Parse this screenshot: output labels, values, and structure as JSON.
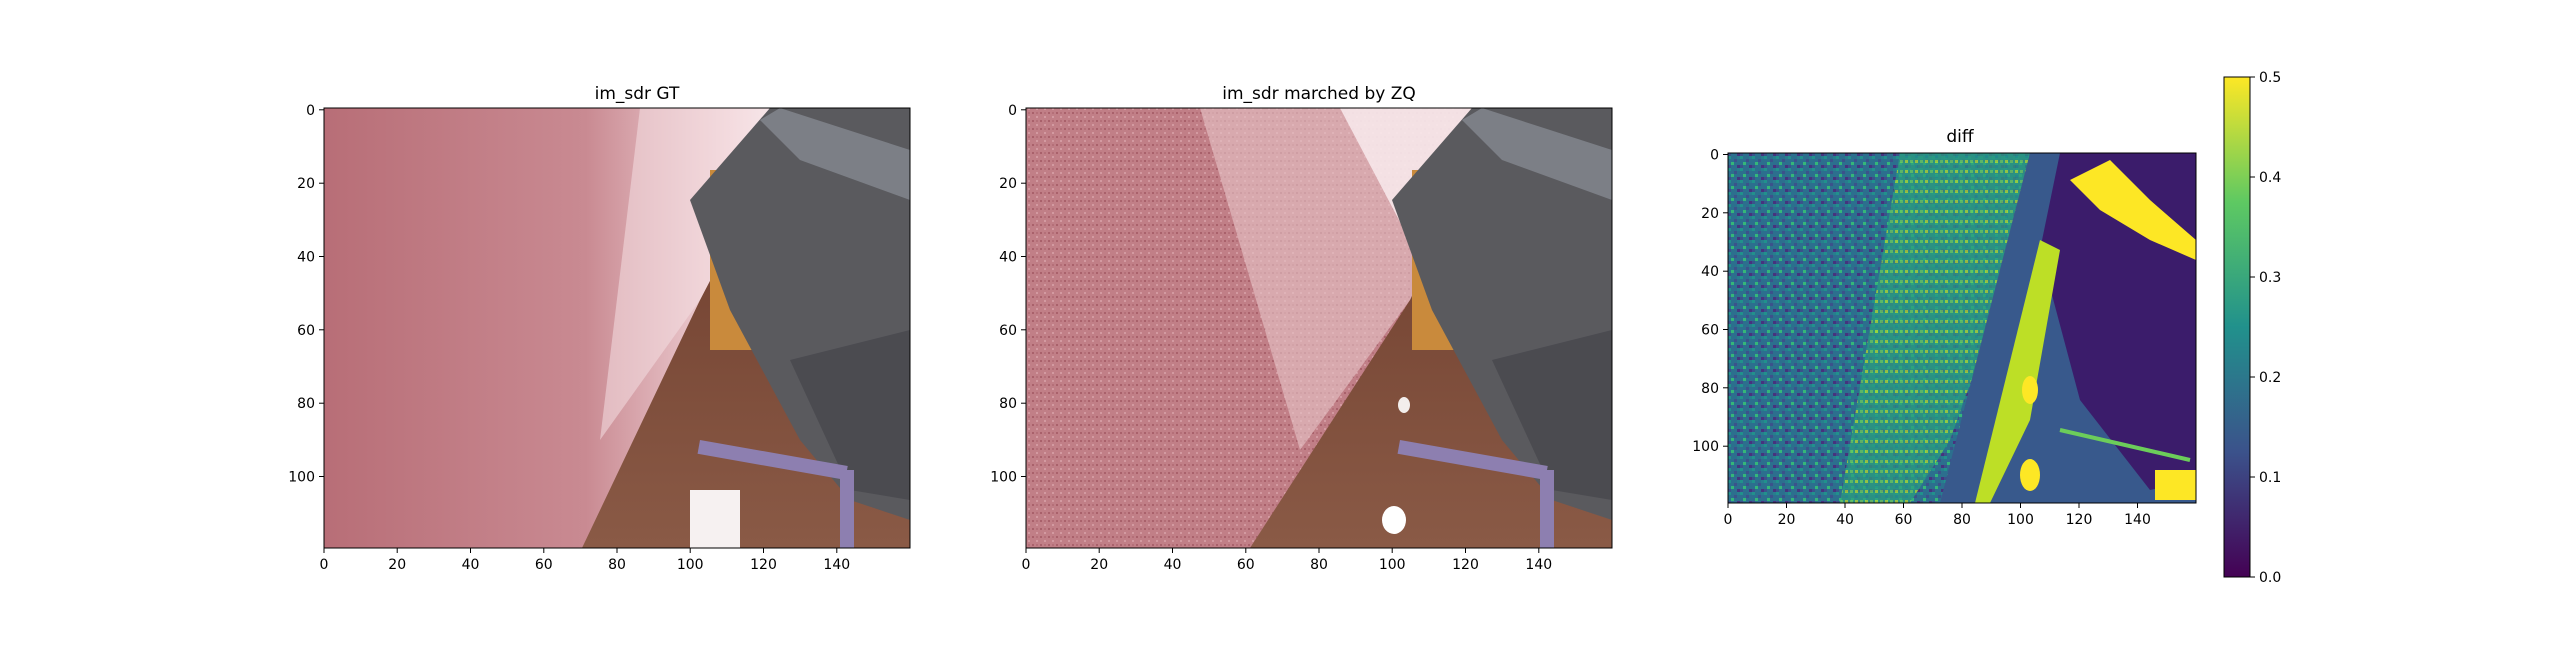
{
  "chart_data": [
    {
      "type": "heatmap",
      "title": "im_sdr GT",
      "content": "rendered RGB image",
      "xlim": [
        0,
        160
      ],
      "ylim": [
        120,
        0
      ],
      "xticks": [
        "0",
        "20",
        "40",
        "60",
        "80",
        "100",
        "120",
        "140"
      ],
      "yticks": [
        "0",
        "20",
        "40",
        "60",
        "80",
        "100"
      ]
    },
    {
      "type": "heatmap",
      "title": "im_sdr marched by ZQ",
      "content": "rendered RGB image",
      "xlim": [
        0,
        160
      ],
      "ylim": [
        120,
        0
      ],
      "xticks": [
        "0",
        "20",
        "40",
        "60",
        "80",
        "100",
        "120",
        "140"
      ],
      "yticks": [
        "0",
        "20",
        "40",
        "60",
        "80",
        "100"
      ]
    },
    {
      "type": "heatmap",
      "title": "diff",
      "colormap": "viridis",
      "xlim": [
        0,
        160
      ],
      "ylim": [
        120,
        0
      ],
      "xticks": [
        "0",
        "20",
        "40",
        "60",
        "80",
        "100",
        "120",
        "140"
      ],
      "yticks": [
        "0",
        "20",
        "40",
        "60",
        "80",
        "100"
      ],
      "colorbar": {
        "range": [
          0.0,
          0.5
        ],
        "ticks": [
          "0.0",
          "0.1",
          "0.2",
          "0.3",
          "0.4",
          "0.5"
        ],
        "colors": [
          "#440154",
          "#3b528b",
          "#21918c",
          "#5ec962",
          "#fde725"
        ]
      }
    }
  ]
}
